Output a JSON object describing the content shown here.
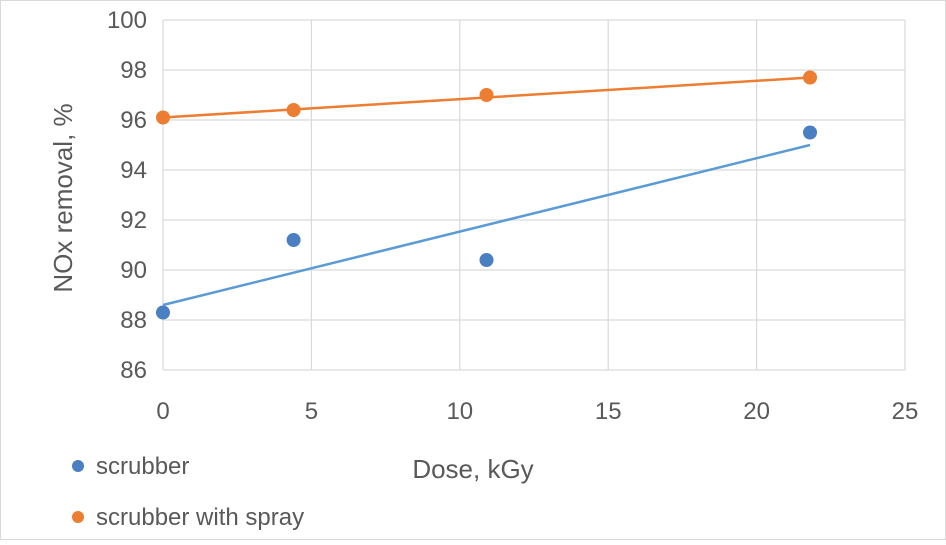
{
  "chart_data": {
    "type": "scatter",
    "xlabel": "Dose, kGy",
    "ylabel": "NOx removal, %",
    "xlim": [
      0,
      25
    ],
    "ylim": [
      86,
      100
    ],
    "x_ticks": [
      "0",
      "5",
      "10",
      "15",
      "20",
      "25"
    ],
    "y_ticks": [
      "86",
      "88",
      "90",
      "92",
      "94",
      "96",
      "98",
      "100"
    ],
    "grid": true,
    "legend_position": "bottom-left",
    "series": [
      {
        "name": "scrubber",
        "color": "#4a7fc1",
        "trendline_color": "#5b9bd5",
        "x": [
          0,
          4.4,
          10.9,
          21.8
        ],
        "y": [
          88.3,
          91.2,
          90.4,
          95.5
        ],
        "trendline": {
          "x": [
            0,
            21.8
          ],
          "y": [
            88.6,
            95.0
          ]
        }
      },
      {
        "name": "scrubber with spray",
        "color": "#ed7d31",
        "trendline_color": "#ed7d31",
        "x": [
          0,
          4.4,
          10.9,
          21.8
        ],
        "y": [
          96.1,
          96.4,
          97.0,
          97.7
        ],
        "trendline": {
          "x": [
            0,
            21.8
          ],
          "y": [
            96.1,
            97.7
          ]
        }
      }
    ]
  }
}
